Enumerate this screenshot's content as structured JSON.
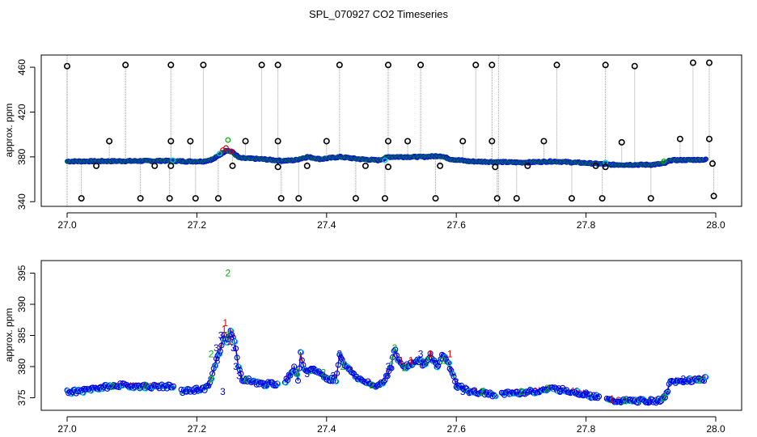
{
  "title": "SPL_070927  CO2 Timeseries",
  "colors": {
    "black": "#000000",
    "red": "#e00000",
    "green": "#00b400",
    "blue": "#0000e6",
    "cyan": "#00d2d2",
    "spike": "#9a9a9a"
  },
  "chart_data": [
    {
      "type": "scatter",
      "ylabel": "approx. ppm",
      "xlim": [
        27.0,
        28.0
      ],
      "ylim": [
        338,
        468
      ],
      "xticks": [
        27.0,
        27.2,
        27.4,
        27.6,
        27.8,
        28.0
      ],
      "xtick_labels": [
        "27.0",
        "27.2",
        "27.4",
        "27.6",
        "27.8",
        "28.0"
      ],
      "yticks": [
        340,
        380,
        420,
        460
      ],
      "ytick_labels": [
        "340",
        "380",
        "420",
        "460"
      ],
      "baseline": [
        [
          27.0,
          376
        ],
        [
          27.1,
          376.3
        ],
        [
          27.16,
          376.5
        ],
        [
          27.18,
          376
        ],
        [
          27.21,
          376
        ],
        [
          27.225,
          378
        ],
        [
          27.235,
          382
        ],
        [
          27.245,
          386
        ],
        [
          27.255,
          384
        ],
        [
          27.265,
          379
        ],
        [
          27.3,
          378
        ],
        [
          27.33,
          376.5
        ],
        [
          27.35,
          377
        ],
        [
          27.37,
          380
        ],
        [
          27.39,
          378
        ],
        [
          27.42,
          380
        ],
        [
          27.45,
          378
        ],
        [
          27.48,
          377
        ],
        [
          27.495,
          380
        ],
        [
          27.52,
          380
        ],
        [
          27.55,
          380
        ],
        [
          27.575,
          381
        ],
        [
          27.59,
          378
        ],
        [
          27.62,
          376
        ],
        [
          27.66,
          375.5
        ],
        [
          27.7,
          375
        ],
        [
          27.75,
          376
        ],
        [
          27.8,
          374.5
        ],
        [
          27.84,
          373
        ],
        [
          27.9,
          373
        ],
        [
          27.92,
          374
        ],
        [
          27.93,
          377
        ],
        [
          27.98,
          377.5
        ]
      ],
      "outliers_high": [
        [
          27.0,
          461
        ],
        [
          27.09,
          462
        ],
        [
          27.16,
          462
        ],
        [
          27.21,
          462
        ],
        [
          27.3,
          462
        ],
        [
          27.325,
          462
        ],
        [
          27.42,
          462
        ],
        [
          27.495,
          462
        ],
        [
          27.545,
          462
        ],
        [
          27.63,
          462
        ],
        [
          27.655,
          462
        ],
        [
          27.755,
          462
        ],
        [
          27.83,
          462
        ],
        [
          27.875,
          461
        ],
        [
          27.965,
          464
        ],
        [
          27.99,
          464
        ]
      ],
      "outliers_mid": [
        [
          27.065,
          394
        ],
        [
          27.16,
          394
        ],
        [
          27.19,
          394
        ],
        [
          27.275,
          394
        ],
        [
          27.325,
          394
        ],
        [
          27.4,
          394
        ],
        [
          27.495,
          394
        ],
        [
          27.525,
          394
        ],
        [
          27.61,
          394
        ],
        [
          27.655,
          394
        ],
        [
          27.735,
          394
        ],
        [
          27.855,
          393
        ],
        [
          27.945,
          396
        ],
        [
          27.99,
          396
        ]
      ],
      "outliers_low": [
        [
          27.045,
          372
        ],
        [
          27.135,
          372
        ],
        [
          27.16,
          372
        ],
        [
          27.255,
          372
        ],
        [
          27.325,
          371
        ],
        [
          27.37,
          372
        ],
        [
          27.46,
          372
        ],
        [
          27.495,
          371
        ],
        [
          27.575,
          372
        ],
        [
          27.66,
          371
        ],
        [
          27.71,
          372
        ],
        [
          27.815,
          372
        ],
        [
          27.83,
          371
        ],
        [
          27.995,
          374
        ]
      ],
      "outliers_bottom": [
        [
          27.022,
          343
        ],
        [
          27.113,
          343
        ],
        [
          27.158,
          343
        ],
        [
          27.198,
          343
        ],
        [
          27.233,
          343
        ],
        [
          27.33,
          343
        ],
        [
          27.357,
          343
        ],
        [
          27.445,
          343
        ],
        [
          27.49,
          343
        ],
        [
          27.568,
          343
        ],
        [
          27.663,
          343
        ],
        [
          27.693,
          343
        ],
        [
          27.778,
          343
        ],
        [
          27.825,
          343
        ],
        [
          27.9,
          343
        ],
        [
          27.997,
          345
        ]
      ]
    },
    {
      "type": "scatter",
      "ylabel": "approx. ppm",
      "xlim": [
        27.0,
        28.0
      ],
      "ylim": [
        373.5,
        396.5
      ],
      "xticks": [
        27.0,
        27.2,
        27.4,
        27.6,
        27.8,
        28.0
      ],
      "xtick_labels": [
        "27.0",
        "27.2",
        "27.4",
        "27.6",
        "27.8",
        "28.0"
      ],
      "yticks": [
        375,
        380,
        385,
        390,
        395
      ],
      "ytick_labels": [
        "375",
        "380",
        "385",
        "390",
        "395"
      ],
      "point_labels": [
        "1",
        "2",
        "3"
      ],
      "series_curve": [
        [
          27.0,
          376
        ],
        [
          27.02,
          376
        ],
        [
          27.04,
          376.5
        ],
        [
          27.08,
          377
        ],
        [
          27.12,
          376.8
        ],
        [
          27.16,
          376.8
        ],
        [
          27.175,
          376
        ],
        [
          27.215,
          376.5
        ],
        [
          27.222,
          378
        ],
        [
          27.23,
          381
        ],
        [
          27.237,
          383
        ],
        [
          27.242,
          385
        ],
        [
          27.247,
          384
        ],
        [
          27.252,
          386
        ],
        [
          27.258,
          384
        ],
        [
          27.264,
          380
        ],
        [
          27.27,
          378
        ],
        [
          27.28,
          377.8
        ],
        [
          27.3,
          377.2
        ],
        [
          27.325,
          377.2
        ],
        [
          27.34,
          378
        ],
        [
          27.35,
          380
        ],
        [
          27.356,
          378
        ],
        [
          27.36,
          382
        ],
        [
          27.368,
          379
        ],
        [
          27.38,
          379.5
        ],
        [
          27.39,
          379
        ],
        [
          27.4,
          378
        ],
        [
          27.415,
          378
        ],
        [
          27.42,
          382
        ],
        [
          27.43,
          380
        ],
        [
          27.45,
          378
        ],
        [
          27.47,
          377
        ],
        [
          27.48,
          377
        ],
        [
          27.49,
          378
        ],
        [
          27.5,
          380
        ],
        [
          27.505,
          383
        ],
        [
          27.51,
          381
        ],
        [
          27.52,
          380
        ],
        [
          27.53,
          380.5
        ],
        [
          27.545,
          381
        ],
        [
          27.55,
          380
        ],
        [
          27.56,
          382
        ],
        [
          27.57,
          380
        ],
        [
          27.58,
          382
        ],
        [
          27.59,
          380
        ],
        [
          27.6,
          377
        ],
        [
          27.62,
          376
        ],
        [
          27.64,
          375.8
        ],
        [
          27.66,
          375.5
        ],
        [
          27.69,
          375.8
        ],
        [
          27.72,
          376
        ],
        [
          27.75,
          376.5
        ],
        [
          27.78,
          376
        ],
        [
          27.8,
          375.5
        ],
        [
          27.82,
          375
        ],
        [
          27.84,
          374.5
        ],
        [
          27.88,
          374.5
        ],
        [
          27.91,
          374.5
        ],
        [
          27.922,
          375
        ],
        [
          27.93,
          377.5
        ],
        [
          27.98,
          378
        ]
      ],
      "gaps": [
        [
          27.165,
          27.175
        ],
        [
          27.325,
          27.335
        ],
        [
          27.66,
          27.668
        ],
        [
          27.82,
          27.83
        ]
      ]
    }
  ]
}
